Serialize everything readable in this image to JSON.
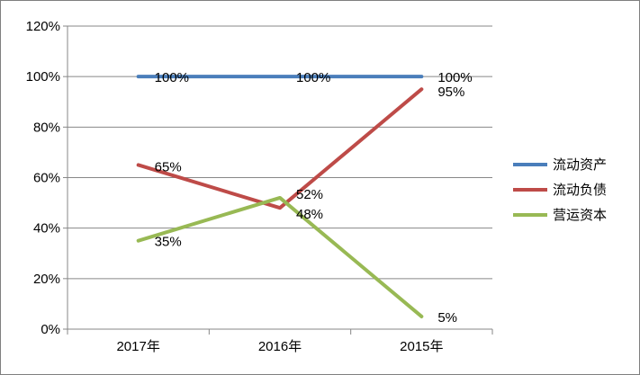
{
  "chart_data": {
    "type": "line",
    "categories": [
      "2017年",
      "2016年",
      "2015年"
    ],
    "ylim": [
      0,
      1.2
    ],
    "yticks": [
      0,
      0.2,
      0.4,
      0.6,
      0.8,
      1.0,
      1.2
    ],
    "ytick_labels": [
      "0%",
      "20%",
      "40%",
      "60%",
      "80%",
      "100%",
      "120%"
    ],
    "grid": true,
    "legend_position": "right",
    "series": [
      {
        "name": "流动资产",
        "color": "#4a7ebb",
        "values": [
          1.0,
          1.0,
          1.0
        ],
        "labels": [
          "100%",
          "100%",
          "100%"
        ]
      },
      {
        "name": "流动负债",
        "color": "#be4b48",
        "values": [
          0.65,
          0.48,
          0.95
        ],
        "labels": [
          "65%",
          "48%",
          "95%"
        ]
      },
      {
        "name": "营运资本",
        "color": "#98b954",
        "values": [
          0.35,
          0.52,
          0.05
        ],
        "labels": [
          "35%",
          "52%",
          "5%"
        ]
      }
    ]
  }
}
